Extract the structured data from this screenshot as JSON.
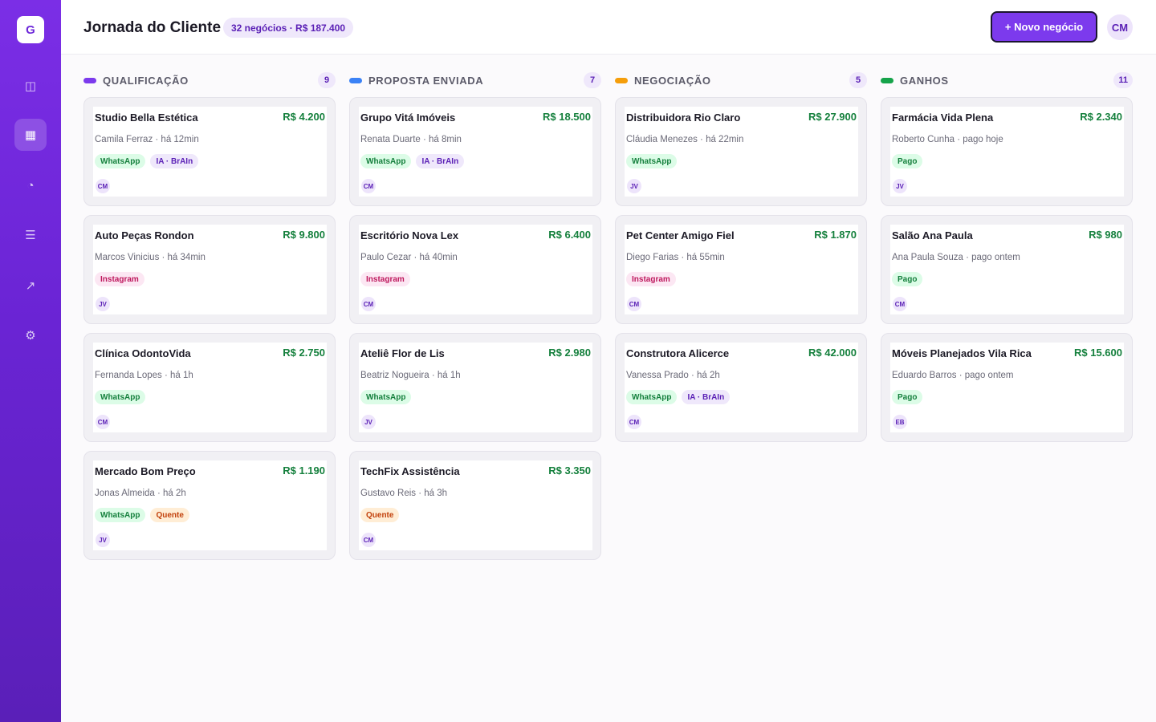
{
  "app": {
    "logo_letter": "G"
  },
  "sidebar": {
    "items": [
      {
        "name": "map",
        "icon": "◫"
      },
      {
        "name": "kanban",
        "icon": "▦",
        "active": true
      },
      {
        "name": "chart",
        "icon": "◔"
      },
      {
        "name": "list",
        "icon": "☰"
      },
      {
        "name": "trend",
        "icon": "↗"
      },
      {
        "name": "settings",
        "icon": "⚙"
      }
    ]
  },
  "header": {
    "title": "Jornada do Cliente",
    "summary": "32 negócios · R$ 187.400",
    "new_button": "+ Novo negócio",
    "user_initials": "CM"
  },
  "columns": [
    {
      "title": "QUALIFICAÇÃO",
      "count": "9",
      "color": "#7c3aed",
      "cards": [
        {
          "name": "Studio Bella Estética",
          "value": "R$ 4.200",
          "meta": "Camila Ferraz · há 12min",
          "tags": [
            {
              "label": "WhatsApp",
              "kind": "whatsapp"
            },
            {
              "label": "IA · BrAIn",
              "kind": "ia"
            }
          ],
          "owner": "CM"
        },
        {
          "name": "Auto Peças Rondon",
          "value": "R$ 9.800",
          "meta": "Marcos Vinicius · há 34min",
          "tags": [
            {
              "label": "Instagram",
              "kind": "instagram"
            }
          ],
          "owner": "JV"
        },
        {
          "name": "Clínica OdontoVida",
          "value": "R$ 2.750",
          "meta": "Fernanda Lopes · há 1h",
          "tags": [
            {
              "label": "WhatsApp",
              "kind": "whatsapp"
            }
          ],
          "owner": "CM"
        },
        {
          "name": "Mercado Bom Preço",
          "value": "R$ 1.190",
          "meta": "Jonas Almeida · há 2h",
          "tags": [
            {
              "label": "WhatsApp",
              "kind": "whatsapp"
            },
            {
              "label": "Quente",
              "kind": "quente"
            }
          ],
          "owner": "JV"
        }
      ]
    },
    {
      "title": "PROPOSTA ENVIADA",
      "count": "7",
      "color": "#3b82f6",
      "cards": [
        {
          "name": "Grupo Vitá Imóveis",
          "value": "R$ 18.500",
          "meta": "Renata Duarte · há 8min",
          "tags": [
            {
              "label": "WhatsApp",
              "kind": "whatsapp"
            },
            {
              "label": "IA · BrAIn",
              "kind": "ia"
            }
          ],
          "owner": "CM"
        },
        {
          "name": "Escritório Nova Lex",
          "value": "R$ 6.400",
          "meta": "Paulo Cezar · há 40min",
          "tags": [
            {
              "label": "Instagram",
              "kind": "instagram"
            }
          ],
          "owner": "CM"
        },
        {
          "name": "Ateliê Flor de Lis",
          "value": "R$ 2.980",
          "meta": "Beatriz Nogueira · há 1h",
          "tags": [
            {
              "label": "WhatsApp",
              "kind": "whatsapp"
            }
          ],
          "owner": "JV"
        },
        {
          "name": "TechFix Assistência",
          "value": "R$ 3.350",
          "meta": "Gustavo Reis · há 3h",
          "tags": [
            {
              "label": "Quente",
              "kind": "quente"
            }
          ],
          "owner": "CM"
        }
      ]
    },
    {
      "title": "NEGOCIAÇÃO",
      "count": "5",
      "color": "#f59e0b",
      "cards": [
        {
          "name": "Distribuidora Rio Claro",
          "value": "R$ 27.900",
          "meta": "Cláudia Menezes · há 22min",
          "tags": [
            {
              "label": "WhatsApp",
              "kind": "whatsapp"
            }
          ],
          "owner": "JV"
        },
        {
          "name": "Pet Center Amigo Fiel",
          "value": "R$ 1.870",
          "meta": "Diego Farias · há 55min",
          "tags": [
            {
              "label": "Instagram",
              "kind": "instagram"
            }
          ],
          "owner": "CM"
        },
        {
          "name": "Construtora Alicerce",
          "value": "R$ 42.000",
          "meta": "Vanessa Prado · há 2h",
          "tags": [
            {
              "label": "WhatsApp",
              "kind": "whatsapp"
            },
            {
              "label": "IA · BrAIn",
              "kind": "ia"
            }
          ],
          "owner": "CM"
        }
      ]
    },
    {
      "title": "GANHOS",
      "count": "11",
      "color": "#16a34a",
      "cards": [
        {
          "name": "Farmácia Vida Plena",
          "value": "R$ 2.340",
          "meta": "Roberto Cunha · pago hoje",
          "tags": [
            {
              "label": "Pago",
              "kind": "pago"
            }
          ],
          "owner": "JV"
        },
        {
          "name": "Salão Ana Paula",
          "value": "R$ 980",
          "meta": "Ana Paula Souza · pago ontem",
          "tags": [
            {
              "label": "Pago",
              "kind": "pago"
            }
          ],
          "owner": "CM"
        },
        {
          "name": "Móveis Planejados Vila Rica",
          "value": "R$ 15.600",
          "meta": "Eduardo Barros · pago ontem",
          "tags": [
            {
              "label": "Pago",
              "kind": "pago"
            }
          ],
          "owner": "EB"
        }
      ]
    }
  ]
}
